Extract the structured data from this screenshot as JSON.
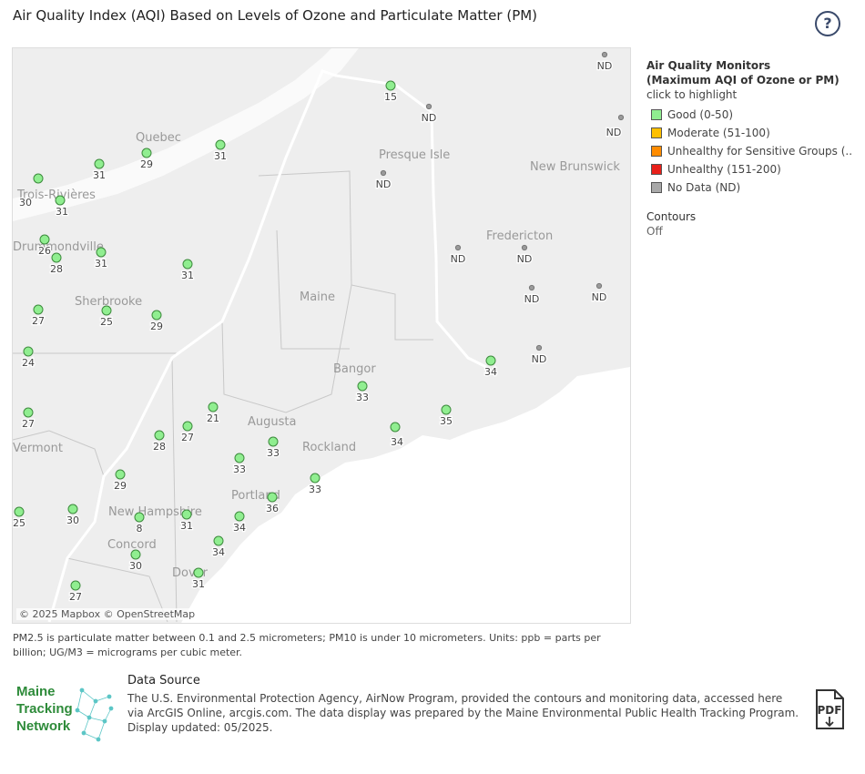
{
  "header": {
    "title": "Air Quality Index (AQI) Based on Levels of Ozone and Particulate Matter (PM)",
    "help_icon": "?"
  },
  "map": {
    "attribution": "© 2025 Mapbox © OpenStreetMap",
    "place_labels": [
      "Quebec",
      "Trois-Rivières",
      "Drummondville",
      "Sherbrooke",
      "Presque Isle",
      "New Brunswick",
      "Fredericton",
      "Maine",
      "Bangor",
      "Augusta",
      "Rockland",
      "Vermont",
      "New Hampshire",
      "Portland",
      "Concord",
      "Dover"
    ],
    "monitors": [
      {
        "label": "ND",
        "status": "nd"
      },
      {
        "label": "15",
        "status": "good"
      },
      {
        "label": "ND",
        "status": "nd"
      },
      {
        "label": "ND",
        "status": "nd"
      },
      {
        "label": "29",
        "status": "good"
      },
      {
        "label": "31",
        "status": "good"
      },
      {
        "label": "31",
        "status": "good"
      },
      {
        "label": "ND",
        "status": "nd"
      },
      {
        "label": "30",
        "status": "good"
      },
      {
        "label": "31",
        "status": "good"
      },
      {
        "label": "26",
        "status": "good"
      },
      {
        "label": "28",
        "status": "good"
      },
      {
        "label": "31",
        "status": "good"
      },
      {
        "label": "31",
        "status": "good"
      },
      {
        "label": "ND",
        "status": "nd"
      },
      {
        "label": "ND",
        "status": "nd"
      },
      {
        "label": "ND",
        "status": "nd"
      },
      {
        "label": "ND",
        "status": "nd"
      },
      {
        "label": "27",
        "status": "good"
      },
      {
        "label": "25",
        "status": "good"
      },
      {
        "label": "29",
        "status": "good"
      },
      {
        "label": "24",
        "status": "good"
      },
      {
        "label": "ND",
        "status": "nd"
      },
      {
        "label": "34",
        "status": "good"
      },
      {
        "label": "33",
        "status": "good"
      },
      {
        "label": "21",
        "status": "good"
      },
      {
        "label": "27",
        "status": "good"
      },
      {
        "label": "35",
        "status": "good"
      },
      {
        "label": "27",
        "status": "good"
      },
      {
        "label": "28",
        "status": "good"
      },
      {
        "label": "34",
        "status": "good"
      },
      {
        "label": "33",
        "status": "good"
      },
      {
        "label": "33",
        "status": "good"
      },
      {
        "label": "33",
        "status": "good"
      },
      {
        "label": "29",
        "status": "good"
      },
      {
        "label": "36",
        "status": "good"
      },
      {
        "label": "25",
        "status": "good"
      },
      {
        "label": "30",
        "status": "good"
      },
      {
        "label": "8",
        "status": "good"
      },
      {
        "label": "31",
        "status": "good"
      },
      {
        "label": "34",
        "status": "good"
      },
      {
        "label": "34",
        "status": "good"
      },
      {
        "label": "30",
        "status": "good"
      },
      {
        "label": "31",
        "status": "good"
      },
      {
        "label": "27",
        "status": "good"
      }
    ]
  },
  "legend": {
    "title_line1": "Air Quality Monitors",
    "title_line2": "(Maximum AQI of Ozone or PM)",
    "subtitle": "click to highlight",
    "items": [
      {
        "label": "Good (0-50)",
        "color": "#90ee90"
      },
      {
        "label": "Moderate (51-100)",
        "color": "#ffc000"
      },
      {
        "label": "Unhealthy for Sensitive Groups (..",
        "color": "#ff8c00"
      },
      {
        "label": "Unhealthy (151-200)",
        "color": "#e8201a"
      },
      {
        "label": "No Data (ND)",
        "color": "#a9a9a9"
      }
    ]
  },
  "contours": {
    "label": "Contours",
    "value": "Off"
  },
  "note": "PM2.5 is particulate matter between 0.1 and 2.5 micrometers; PM10 is under 10 micrometers. Units: ppb = parts per billion; UG/M3 = micrograms per cubic meter.",
  "logo": {
    "line1": "Maine",
    "line2": "Tracking",
    "line3": "Network"
  },
  "data_source": {
    "title": "Data Source",
    "text": "The U.S. Environmental Protection Agency, AirNow Program, provided the contours and monitoring data, accessed here via ArcGIS Online, arcgis.com. The data display was prepared by the Maine Environmental Public Health Tracking Program. Display updated: 05/2025."
  },
  "pdf_label": "PDF"
}
